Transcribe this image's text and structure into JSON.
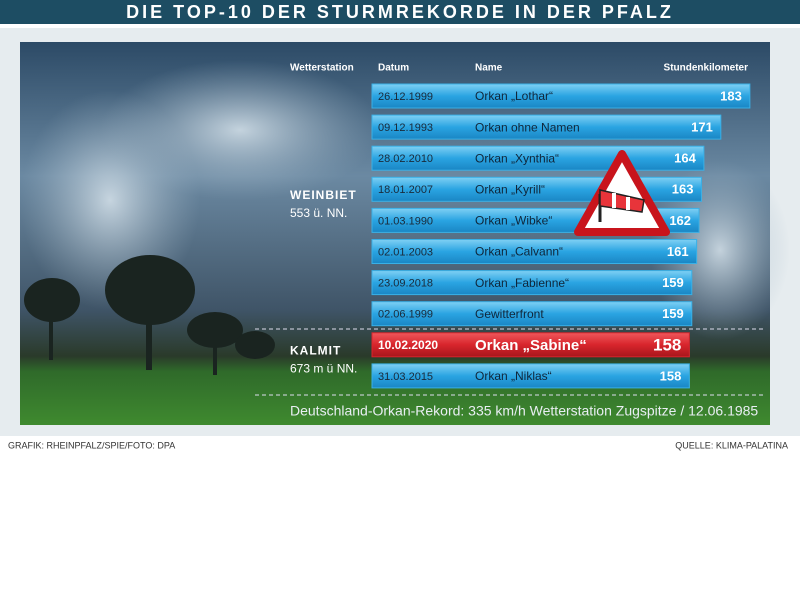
{
  "header": {
    "title": "DIE TOP-10 DER STURMREKORDE IN DER PFALZ"
  },
  "chart_data": {
    "type": "bar",
    "orientation": "horizontal",
    "columns": [
      "Wetterstation",
      "Datum",
      "Name",
      "Stundenkilometer"
    ],
    "categories": [
      "26.12.1999",
      "09.12.1993",
      "28.02.2010",
      "18.01.2007",
      "01.03.1990",
      "02.01.2003",
      "23.09.2018",
      "02.06.1999",
      "10.02.2020",
      "31.03.2015"
    ],
    "names": [
      "Orkan „Lothar“",
      "Orkan ohne Namen",
      "Orkan „Xynthia“",
      "Orkan „Kyrill“",
      "Orkan „Wibke“",
      "Orkan „Calvann“",
      "Orkan „Fabienne“",
      "Gewitterfront",
      "Orkan „Sabine“",
      "Orkan „Niklas“"
    ],
    "values": [
      183,
      171,
      164,
      163,
      162,
      161,
      159,
      159,
      158,
      158
    ],
    "color": "#39b0e6",
    "highlight_index": 8,
    "highlight_color": "#d8252c",
    "stations": [
      {
        "name": "WEINBIET",
        "height": "553 ü. NN.",
        "rows": [
          0,
          7
        ]
      },
      {
        "name": "KALMIT",
        "height": "673 m ü NN.",
        "rows": [
          8,
          9
        ]
      }
    ],
    "note": "Deutschland-Orkan-Rekord: 335 km/h Wetterstation Zugspitze / 12.06.1985"
  },
  "footer": {
    "credit": "GRAFIK: RHEINPFALZ/SPIE/FOTO: DPA",
    "source": "QUELLE: KLIMA-PALATINA"
  }
}
